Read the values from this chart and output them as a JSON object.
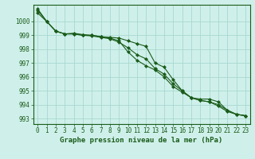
{
  "title": "Graphe pression niveau de la mer (hPa)",
  "xlabel": "Graphe pression niveau de la mer (hPa)",
  "background_color": "#cff0ea",
  "grid_color": "#a8d8d0",
  "line_color": "#1a5c1a",
  "hours": [
    0,
    1,
    2,
    3,
    4,
    5,
    6,
    7,
    8,
    9,
    10,
    11,
    12,
    13,
    14,
    15,
    16,
    17,
    18,
    19,
    20,
    21,
    22,
    23
  ],
  "line1": [
    1000.6,
    1000.0,
    999.3,
    999.1,
    999.1,
    999.0,
    999.0,
    998.9,
    998.85,
    998.8,
    998.6,
    998.4,
    998.2,
    997.0,
    996.7,
    995.8,
    995.0,
    994.5,
    994.4,
    994.4,
    994.2,
    993.6,
    993.3,
    993.2
  ],
  "line2": [
    1000.8,
    1000.0,
    999.3,
    999.1,
    999.1,
    999.0,
    998.95,
    998.85,
    998.75,
    998.5,
    998.1,
    997.6,
    997.3,
    996.6,
    996.2,
    995.5,
    995.0,
    994.5,
    994.3,
    994.2,
    993.9,
    993.5,
    993.3,
    993.2
  ],
  "line3": [
    1000.9,
    1000.0,
    999.3,
    999.1,
    999.15,
    999.05,
    999.0,
    998.9,
    998.8,
    998.6,
    997.8,
    997.2,
    996.8,
    996.5,
    996.0,
    995.3,
    994.9,
    994.5,
    994.3,
    994.2,
    994.0,
    993.6,
    993.3,
    993.2
  ],
  "ylim": [
    992.6,
    1001.2
  ],
  "yticks": [
    993,
    994,
    995,
    996,
    997,
    998,
    999,
    1000
  ],
  "marker": "D",
  "markersize": 2.0,
  "linewidth": 0.8,
  "tick_fontsize": 5.5,
  "label_fontsize": 6.5
}
